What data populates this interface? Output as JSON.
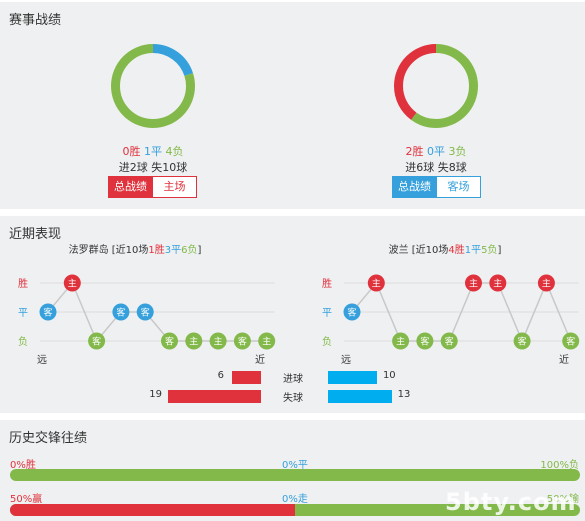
{
  "colors": {
    "win": "#e0323c",
    "draw": "#35a0dc",
    "loss": "#83b94a",
    "score_blue": "#00aef0",
    "panel": "#eff0f2"
  },
  "record": {
    "title": "赛事战绩",
    "left": {
      "win": "0胜",
      "draw": "1平",
      "loss": "4负",
      "goals": "进2球 失10球",
      "tab_all": "总战绩",
      "tab_venue": "主场",
      "donut": {
        "win": 0,
        "draw": 1,
        "loss": 4
      }
    },
    "right": {
      "win": "2胜",
      "draw": "0平",
      "loss": "3负",
      "goals": "进6球 失8球",
      "tab_all": "总战绩",
      "tab_venue": "客场",
      "donut": {
        "win": 2,
        "draw": 0,
        "loss": 3
      }
    }
  },
  "recent": {
    "title": "近期表现",
    "axis": {
      "win": "胜",
      "draw": "平",
      "loss": "负",
      "far": "远",
      "near": "近"
    },
    "left": {
      "team": "法罗群岛",
      "summary_pre": " [近10场",
      "w": "1胜",
      "d": "3平",
      "l": "6负",
      "summary_post": "]",
      "results": [
        "D",
        "W",
        "L",
        "D",
        "D",
        "L",
        "L",
        "L",
        "L",
        "L"
      ],
      "venues": [
        "客",
        "主",
        "客",
        "客",
        "客",
        "客",
        "主",
        "主",
        "客",
        "主"
      ]
    },
    "right": {
      "team": "波兰",
      "summary_pre": " [近10场",
      "w": "4胜",
      "d": "1平",
      "l": "5负",
      "summary_post": "]",
      "results": [
        "D",
        "W",
        "L",
        "L",
        "L",
        "W",
        "W",
        "L",
        "W",
        "L"
      ],
      "venues": [
        "客",
        "主",
        "主",
        "客",
        "客",
        "主",
        "主",
        "客",
        "主",
        "客"
      ]
    },
    "goals": {
      "label_for": "进球",
      "label_against": "失球",
      "left_for": 6,
      "left_against": 19,
      "right_for": 10,
      "right_against": 13,
      "max": 20
    }
  },
  "history": {
    "title": "历史交锋往绩",
    "row1": {
      "left": "0%胜",
      "mid": "0%平",
      "right": "100%负",
      "win_pct": 0,
      "loss_pct": 100
    },
    "row2": {
      "left": "50%赢",
      "mid": "0%走",
      "right": "50%输",
      "win_pct": 50,
      "loss_pct": 50
    }
  },
  "watermark": "5bty.com"
}
